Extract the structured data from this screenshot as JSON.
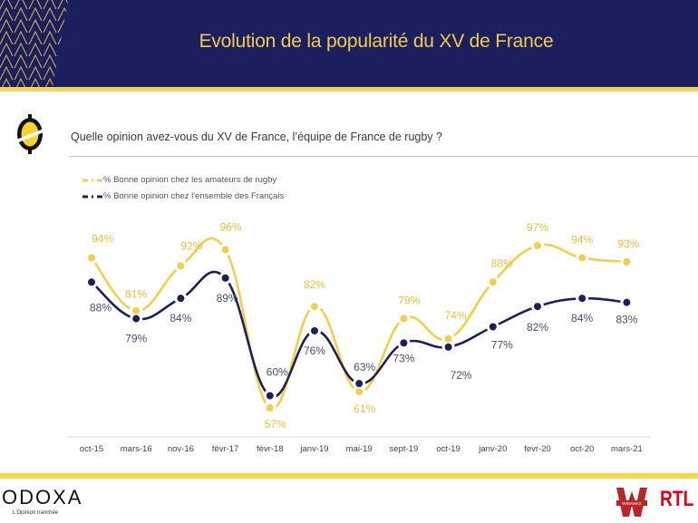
{
  "header": {
    "title": "Evolution de la popularité du XV de France"
  },
  "question": {
    "text": "Quelle opinion avez-vous du XV de France, l’équipe de France de rugby ?"
  },
  "colors": {
    "navy": "#1b1f5e",
    "gold": "#f1cb4a",
    "series_rugby": "#f2cf4a",
    "series_all": "#1b1f5e",
    "rtl_red": "#e2001a",
    "winamax_red": "#b8262c"
  },
  "footer": {
    "brand": "ODOXA",
    "tagline": "L'Opinion tranchée",
    "partner_1": "WINAMAX",
    "partner_2": "RTL"
  },
  "chart_data": {
    "type": "line",
    "title": "Evolution de la popularité du XV de France",
    "subtitle": "Quelle opinion avez-vous du XV de France, l’équipe de France de rugby ?",
    "xlabel": "",
    "ylabel": "",
    "grid": false,
    "legend_position": "top-left",
    "ylim": [
      57,
      97
    ],
    "categories": [
      "oct-15",
      "mars-16",
      "nov-16",
      "févr-17",
      "févr-18",
      "janv-19",
      "mai-19",
      "sept-19",
      "oct-19",
      "janv-20",
      "fevr-20",
      "oct-20",
      "mars-21"
    ],
    "series": [
      {
        "name": "% Bonne opinion chez les amateurs de rugby",
        "color": "#f2cf4a",
        "values": [
          94,
          81,
          92,
          96,
          57,
          82,
          61,
          79,
          74,
          88,
          97,
          94,
          93
        ],
        "labels": [
          "94%",
          "81%",
          "92%",
          "96%",
          "57%",
          "82%",
          "61%",
          "79%",
          "74%",
          "88%",
          "97%",
          "94%",
          "93%"
        ]
      },
      {
        "name": "% Bonne opinion chez l'ensemble des Français",
        "color": "#1b1f5e",
        "values": [
          88,
          79,
          84,
          89,
          60,
          76,
          63,
          73,
          72,
          77,
          82,
          84,
          83
        ],
        "labels": [
          "88%",
          "79%",
          "84%",
          "89%",
          "60%",
          "76%",
          "63%",
          "73%",
          "72%",
          "77%",
          "82%",
          "84%",
          "83%"
        ]
      }
    ]
  }
}
